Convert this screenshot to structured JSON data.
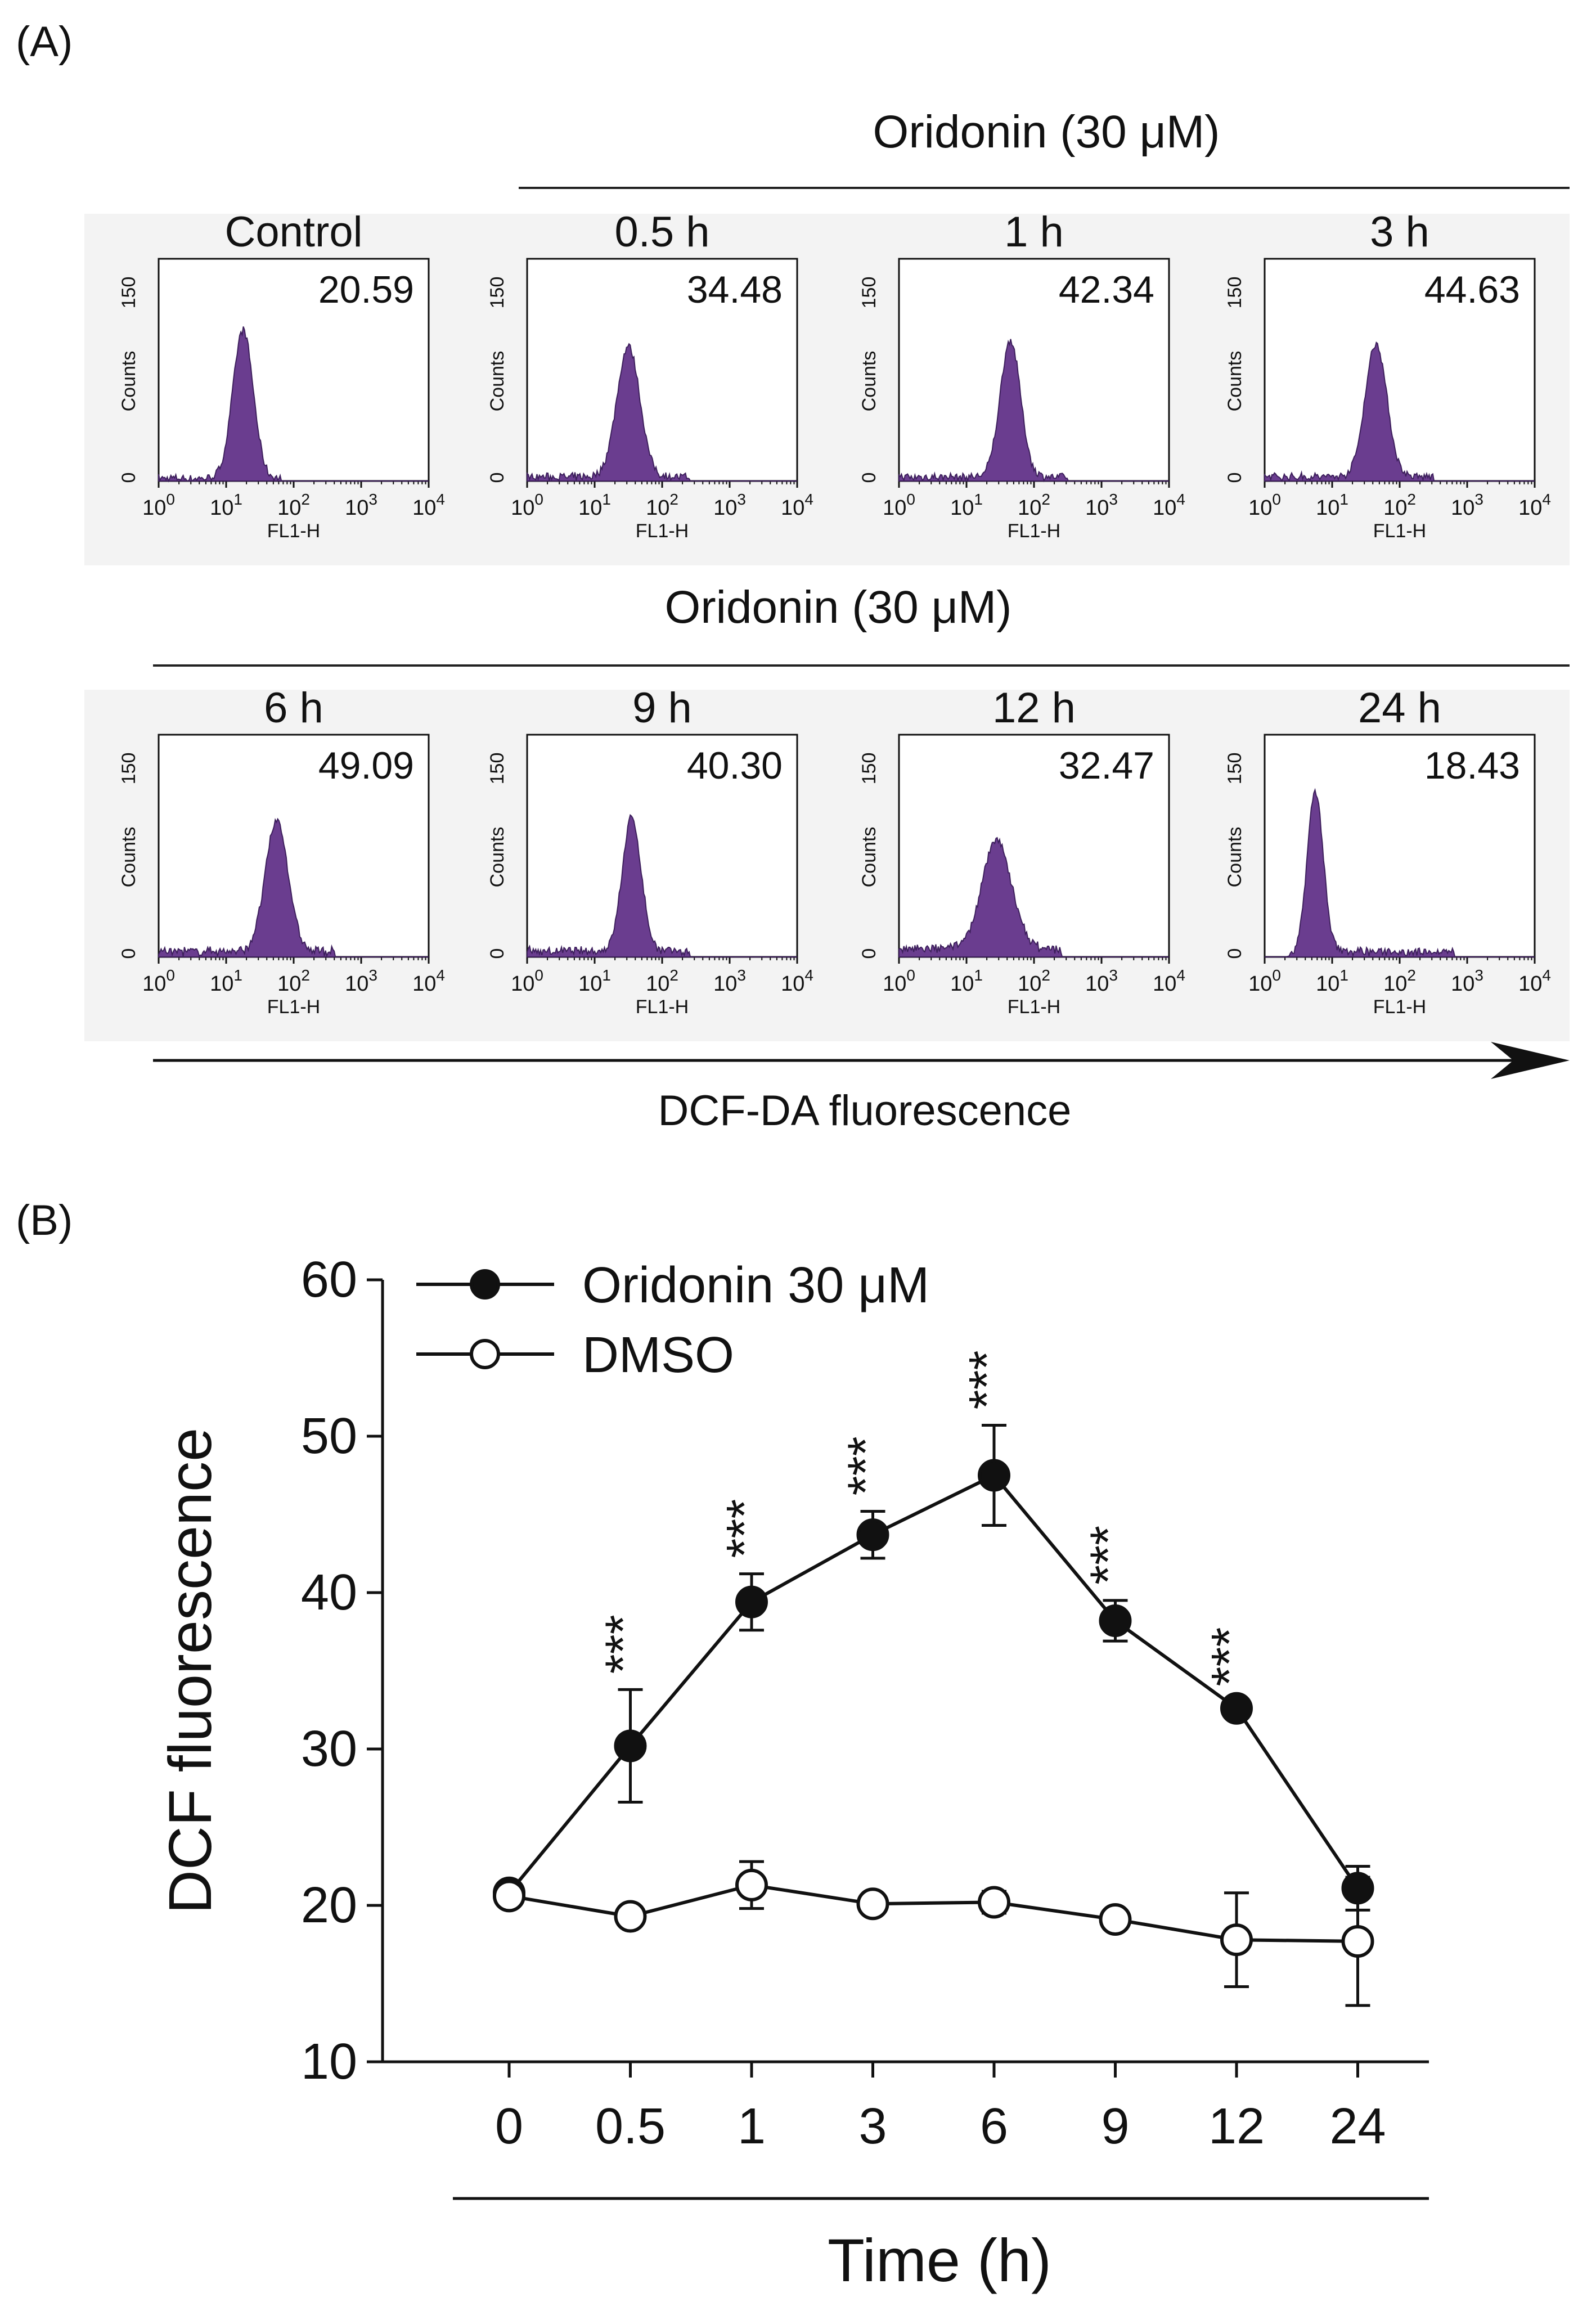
{
  "panel_a": {
    "label": "(A)",
    "group_label_top": "Oridonin (30 μM)",
    "group_label_bottom": "Oridonin (30 μM)",
    "axis_y_label": "Counts",
    "axis_y_max": "150",
    "axis_y_min": "0",
    "axis_x_label": "FL1-H",
    "x_tick_base": "10",
    "x_tick_exps": [
      "0",
      "1",
      "2",
      "3",
      "4"
    ],
    "arrow_label": "DCF-DA fluorescence",
    "hist_color": "#6a3d8f"
  },
  "panel_b": {
    "label": "(B)"
  },
  "chart_data": [
    {
      "type": "area",
      "title": "Control",
      "value_label": "20.59",
      "xlabel": "FL1-H",
      "ylabel": "Counts",
      "x_scale": "log",
      "x_range": [
        1,
        10000
      ],
      "y_range": [
        0,
        150
      ],
      "peak_log10": 1.25,
      "peak_height": 100,
      "peak_width": 0.15,
      "tail_height": 2,
      "tail_range": [
        0,
        1.8
      ]
    },
    {
      "type": "area",
      "title": "0.5 h",
      "value_label": "34.48",
      "xlabel": "FL1-H",
      "ylabel": "Counts",
      "x_scale": "log",
      "x_range": [
        1,
        10000
      ],
      "y_range": [
        0,
        150
      ],
      "peak_log10": 1.5,
      "peak_height": 88,
      "peak_width": 0.17,
      "tail_height": 3,
      "tail_range": [
        0,
        2.4
      ]
    },
    {
      "type": "area",
      "title": "1 h",
      "value_label": "42.34",
      "xlabel": "FL1-H",
      "ylabel": "Counts",
      "x_scale": "log",
      "x_range": [
        1,
        10000
      ],
      "y_range": [
        0,
        150
      ],
      "peak_log10": 1.65,
      "peak_height": 92,
      "peak_width": 0.15,
      "tail_height": 3,
      "tail_range": [
        0,
        2.5
      ]
    },
    {
      "type": "area",
      "title": "3 h",
      "value_label": "44.63",
      "xlabel": "FL1-H",
      "ylabel": "Counts",
      "x_scale": "log",
      "x_range": [
        1,
        10000
      ],
      "y_range": [
        0,
        150
      ],
      "peak_log10": 1.65,
      "peak_height": 90,
      "peak_width": 0.16,
      "tail_height": 3,
      "tail_range": [
        0,
        2.5
      ]
    },
    {
      "type": "area",
      "title": "6 h",
      "value_label": "49.09",
      "xlabel": "FL1-H",
      "ylabel": "Counts",
      "x_scale": "log",
      "x_range": [
        1,
        10000
      ],
      "y_range": [
        0,
        150
      ],
      "peak_log10": 1.75,
      "peak_height": 88,
      "peak_width": 0.17,
      "tail_height": 4,
      "tail_range": [
        0,
        2.6
      ]
    },
    {
      "type": "area",
      "title": "9 h",
      "value_label": "40.30",
      "xlabel": "FL1-H",
      "ylabel": "Counts",
      "x_scale": "log",
      "x_range": [
        1,
        10000
      ],
      "y_range": [
        0,
        150
      ],
      "peak_log10": 1.55,
      "peak_height": 90,
      "peak_width": 0.14,
      "tail_height": 4,
      "tail_range": [
        0,
        2.4
      ]
    },
    {
      "type": "area",
      "title": "12 h",
      "value_label": "32.47",
      "xlabel": "FL1-H",
      "ylabel": "Counts",
      "x_scale": "log",
      "x_range": [
        1,
        10000
      ],
      "y_range": [
        0,
        150
      ],
      "peak_log10": 1.45,
      "peak_height": 72,
      "peak_width": 0.22,
      "tail_height": 6,
      "tail_range": [
        0,
        2.4
      ]
    },
    {
      "type": "area",
      "title": "24 h",
      "value_label": "18.43",
      "xlabel": "FL1-H",
      "ylabel": "Counts",
      "x_scale": "log",
      "x_range": [
        1,
        10000
      ],
      "y_range": [
        0,
        150
      ],
      "peak_log10": 0.75,
      "peak_height": 112,
      "peak_width": 0.12,
      "tail_height": 4,
      "tail_range": [
        1.0,
        2.8
      ]
    },
    {
      "type": "line",
      "title": "",
      "ylabel": "DCF fluorescence",
      "xlabel": "Time (h)",
      "categories": [
        "0",
        "0.5",
        "1",
        "3",
        "6",
        "9",
        "12",
        "24"
      ],
      "ylim": [
        10,
        60
      ],
      "yticks": [
        10,
        20,
        30,
        40,
        50,
        60
      ],
      "legend_position": "top-left",
      "significance_marker": "***",
      "series": [
        {
          "name": "Oridonin 30 μM",
          "marker": "filled-circle",
          "values": [
            20.8,
            30.2,
            39.4,
            43.7,
            47.5,
            38.2,
            32.6,
            21.1
          ],
          "errors": [
            0.4,
            3.6,
            1.8,
            1.5,
            3.2,
            1.3,
            0.4,
            1.4
          ],
          "significance": [
            "",
            "***",
            "***",
            "***",
            "***",
            "***",
            "***",
            ""
          ]
        },
        {
          "name": "DMSO",
          "marker": "open-circle",
          "values": [
            20.6,
            19.3,
            21.3,
            20.1,
            20.2,
            19.1,
            17.8,
            17.7
          ],
          "errors": [
            0.3,
            0.6,
            1.5,
            0.3,
            0.7,
            0.4,
            3.0,
            4.1
          ]
        }
      ]
    }
  ]
}
